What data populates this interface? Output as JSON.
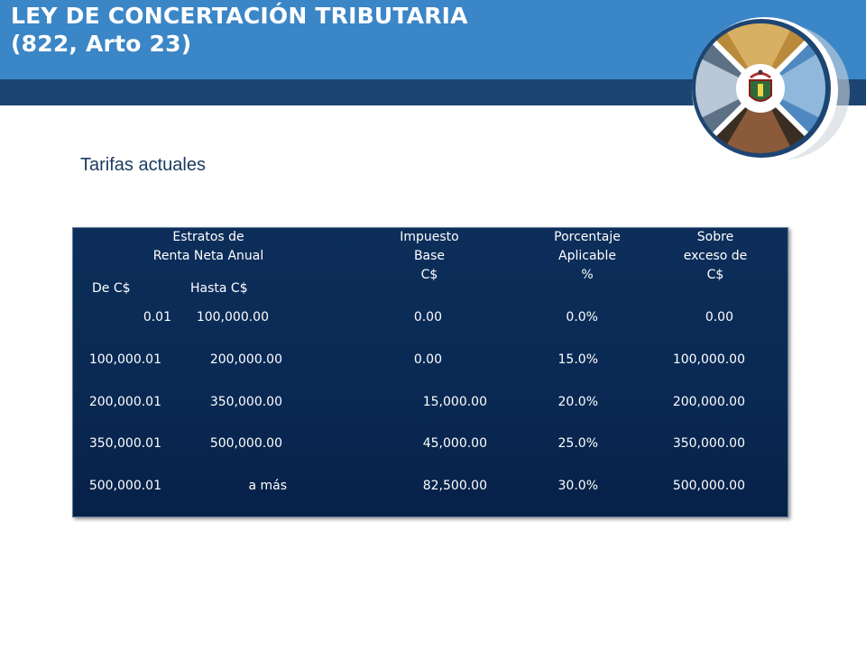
{
  "header": {
    "title_line1": "LEY DE CONCERTACIÓN TRIBUTARIA",
    "title_line2": "(822, Arto 23)",
    "colors": {
      "header_blue": "#3b86c6",
      "strip_navy": "#1d4572"
    }
  },
  "logo": {
    "icon": "institution-emblem-icon"
  },
  "subtitle": "Tarifas actuales",
  "table": {
    "headers": {
      "estratos_line1": "Estratos de",
      "estratos_line2": "Renta Neta Anual",
      "de": "De C$",
      "hasta": "Hasta C$",
      "impuesto_line1": "Impuesto",
      "impuesto_line2": "Base",
      "impuesto_line3": "C$",
      "porcentaje_line1": "Porcentaje",
      "porcentaje_line2": "Aplicable",
      "porcentaje_line3": "%",
      "sobre_line1": "Sobre",
      "sobre_line2": "exceso de",
      "sobre_line3": "C$"
    },
    "rows": [
      {
        "de": "0.01",
        "hasta": "100,000.00",
        "impuesto": "0.00",
        "porcentaje": "0.0%",
        "sobre": "0.00"
      },
      {
        "de": "100,000.01",
        "hasta": "200,000.00",
        "impuesto": "0.00",
        "porcentaje": "15.0%",
        "sobre": "100,000.00"
      },
      {
        "de": "200,000.01",
        "hasta": "350,000.00",
        "impuesto": "15,000.00",
        "porcentaje": "20.0%",
        "sobre": "200,000.00"
      },
      {
        "de": "350,000.01",
        "hasta": "500,000.00",
        "impuesto": "45,000.00",
        "porcentaje": "25.0%",
        "sobre": "350,000.00"
      },
      {
        "de": "500,000.01",
        "hasta": "a más",
        "impuesto": "82,500.00",
        "porcentaje": "30.0%",
        "sobre": "500,000.00"
      }
    ]
  }
}
